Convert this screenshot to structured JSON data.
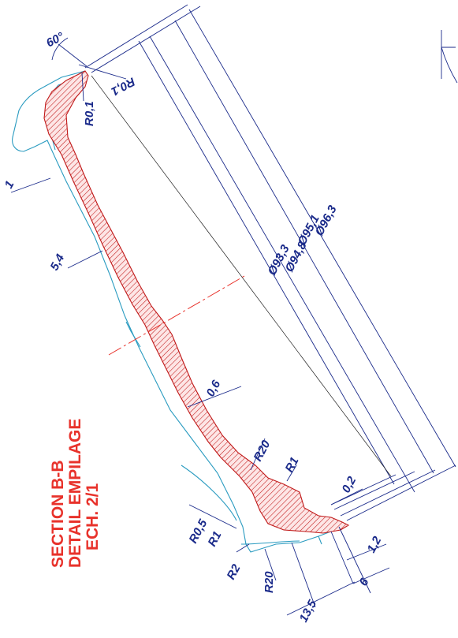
{
  "title_lines": [
    "SECTION B-B",
    "DETAIL EMPILAGE",
    "ECH. 2/1"
  ],
  "dimensions": {
    "angle": "60°",
    "r01_a": "R0,1",
    "r01_b": "R0,1",
    "thk_1": "1",
    "thk_54": "5,4",
    "d933": "Ø93,3",
    "d948": "Ø94,8",
    "d951": "Ø95,1",
    "d963": "Ø96,3",
    "thk_06": "0,6",
    "r20_a": "R20",
    "r1_a": "R1",
    "gap_02": "0,2",
    "r05": "R0,5",
    "r1_b": "R1",
    "r2": "R2",
    "r20_b": "R20",
    "h_12": "1,2",
    "h_6": "6",
    "h_135": "13,5"
  },
  "colors": {
    "dimension": "#1a2a8a",
    "outline": "#2a9bc0",
    "section": "#c01818",
    "title": "#e8322b"
  }
}
